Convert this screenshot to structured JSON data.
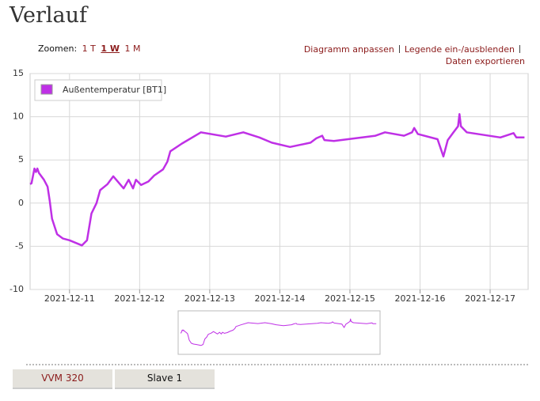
{
  "header": {
    "title": "Verlauf"
  },
  "zoom": {
    "label": "Zoomen:",
    "options": [
      "1 T",
      "1 W",
      "1 M"
    ]
  },
  "links": [
    "Diagramm anpassen",
    "Legende ein-/ausblenden",
    "Daten exportieren"
  ],
  "chart_data": {
    "type": "line",
    "x": [
      "2021-12-10 10:30",
      "2021-12-10 11:00",
      "2021-12-10 12:00",
      "2021-12-10 12:30",
      "2021-12-10 13:00",
      "2021-12-10 13:30",
      "2021-12-10 15:15",
      "2021-12-10 16:30",
      "2021-12-10 17:15",
      "2021-12-10 18:00",
      "2021-12-10 19:45",
      "2021-12-10 21:45",
      "2021-12-11 00:00",
      "2021-12-11 04:15",
      "2021-12-11 06:00",
      "2021-12-11 07:30",
      "2021-12-11 09:15",
      "2021-12-11 10:30",
      "2021-12-11 13:00",
      "2021-12-11 15:00",
      "2021-12-11 18:30",
      "2021-12-11 20:15",
      "2021-12-11 21:45",
      "2021-12-11 22:45",
      "2021-12-12 00:30",
      "2021-12-12 03:00",
      "2021-12-12 05:00",
      "2021-12-12 08:00",
      "2021-12-12 09:30",
      "2021-12-12 10:30",
      "2021-12-12 14:30",
      "2021-12-12 21:00",
      "2021-12-13 05:30",
      "2021-12-13 11:30",
      "2021-12-13 17:00",
      "2021-12-13 21:15",
      "2021-12-14 03:30",
      "2021-12-14 10:30",
      "2021-12-14 12:30",
      "2021-12-14 14:30",
      "2021-12-14 15:15",
      "2021-12-14 18:30",
      "2021-12-15 08:45",
      "2021-12-15 12:00",
      "2021-12-15 18:30",
      "2021-12-15 21:15",
      "2021-12-15 22:00",
      "2021-12-15 23:15",
      "2021-12-16 06:00",
      "2021-12-16 08:00",
      "2021-12-16 09:30",
      "2021-12-16 11:15",
      "2021-12-16 13:00",
      "2021-12-16 13:30",
      "2021-12-16 14:00",
      "2021-12-16 16:00",
      "2021-12-17 03:30",
      "2021-12-17 08:00",
      "2021-12-17 09:00",
      "2021-12-17 11:45"
    ],
    "series": [
      {
        "name": "Außentemperatur [BT1]",
        "color": "#bf30e6",
        "values": [
          2.2,
          2.3,
          4.0,
          3.6,
          4.0,
          3.5,
          2.7,
          1.9,
          0.2,
          -1.8,
          -3.6,
          -4.1,
          -4.3,
          -4.9,
          -4.3,
          -1.2,
          0,
          1.5,
          2.2,
          3.1,
          1.7,
          2.7,
          1.7,
          2.7,
          2.1,
          2.5,
          3.2,
          3.9,
          4.8,
          6.0,
          6.9,
          8.2,
          7.7,
          8.2,
          7.6,
          7.0,
          6.5,
          7.0,
          7.5,
          7.8,
          7.3,
          7.2,
          7.8,
          8.2,
          7.8,
          8.2,
          8.7,
          8.0,
          7.4,
          5.4,
          7.3,
          8.1,
          8.9,
          10.3,
          8.9,
          8.2,
          7.6,
          8.1,
          7.6,
          7.6
        ]
      }
    ],
    "xlim": [
      "2021-12-10 10:30",
      "2021-12-17 13:00"
    ],
    "xticks": [
      "2021-12-11",
      "2021-12-12",
      "2021-12-13",
      "2021-12-14",
      "2021-12-15",
      "2021-12-16",
      "2021-12-17"
    ],
    "ylim": [
      -10,
      15
    ],
    "yticks": [
      -10,
      -5,
      0,
      5,
      10,
      15
    ],
    "grid": true,
    "legend": "top-left"
  },
  "tabs": [
    "VVM 320",
    "Slave 1"
  ]
}
